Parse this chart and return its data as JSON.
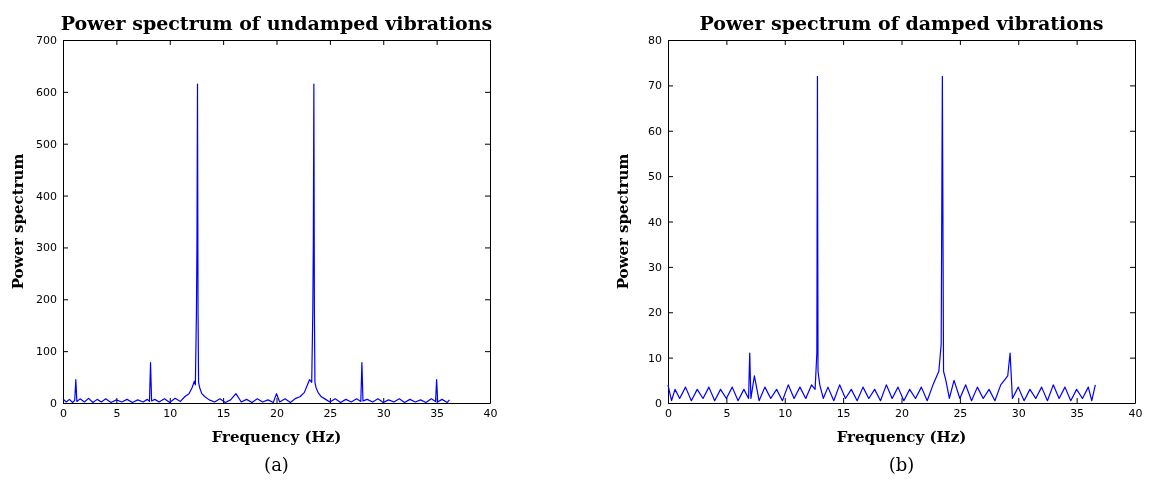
{
  "chart_data": [
    {
      "type": "line",
      "title": "Power spectrum of undamped vibrations",
      "xlabel": "Frequency (Hz)",
      "ylabel": "Power spectrum",
      "annotations": [
        "(a)"
      ],
      "xlim": [
        0,
        40
      ],
      "xticks": [
        0,
        5,
        10,
        15,
        20,
        25,
        30,
        35,
        40
      ],
      "ylim": [
        0,
        700
      ],
      "yticks": [
        0,
        100,
        200,
        300,
        400,
        500,
        600,
        700
      ],
      "series": [
        {
          "color": "#0000ff",
          "x": [
            0,
            0.3,
            0.6,
            0.9,
            1.1,
            1.2,
            1.3,
            1.6,
            2.0,
            2.4,
            2.8,
            3.2,
            3.6,
            4.0,
            4.5,
            5.0,
            5.5,
            6.0,
            6.5,
            7.0,
            7.5,
            7.9,
            8.1,
            8.2,
            8.3,
            8.6,
            9.0,
            9.5,
            10,
            10.5,
            11,
            11.4,
            11.8,
            12.1,
            12.3,
            12.4,
            12.5,
            12.55,
            12.6,
            12.65,
            12.7,
            12.8,
            13.0,
            13.3,
            13.7,
            14.2,
            14.7,
            15.2,
            15.7,
            16.2,
            16.7,
            17.2,
            17.7,
            18.2,
            18.7,
            19.2,
            19.7,
            20.0,
            20.3,
            20.8,
            21.3,
            21.8,
            22.2,
            22.6,
            22.9,
            23.1,
            23.3,
            23.4,
            23.45,
            23.5,
            23.55,
            23.6,
            23.7,
            23.9,
            24.2,
            24.6,
            25.0,
            25.5,
            26,
            26.5,
            27,
            27.5,
            27.9,
            28.0,
            28.1,
            28.5,
            29,
            29.5,
            30,
            30.5,
            31,
            31.5,
            32,
            32.5,
            33,
            33.5,
            34,
            34.5,
            34.9,
            35.0,
            35.1,
            35.5,
            36.0,
            36.2
          ],
          "values": [
            8,
            2,
            7,
            1,
            5,
            45,
            3,
            8,
            2,
            9,
            1,
            7,
            2,
            8,
            1,
            6,
            2,
            7,
            1,
            6,
            2,
            7,
            3,
            78,
            4,
            7,
            2,
            8,
            1,
            9,
            3,
            12,
            18,
            30,
            42,
            35,
            175,
            310,
            615,
            175,
            40,
            30,
            18,
            12,
            6,
            2,
            8,
            1,
            6,
            18,
            2,
            7,
            1,
            8,
            2,
            6,
            1,
            18,
            2,
            8,
            1,
            9,
            12,
            20,
            35,
            45,
            40,
            175,
            310,
            615,
            175,
            40,
            30,
            20,
            12,
            7,
            2,
            8,
            1,
            7,
            2,
            8,
            3,
            78,
            4,
            7,
            2,
            8,
            1,
            6,
            2,
            8,
            1,
            7,
            2,
            6,
            1,
            8,
            3,
            45,
            2,
            7,
            1,
            6
          ]
        }
      ]
    },
    {
      "type": "line",
      "title": "Power spectrum of damped vibrations",
      "xlabel": "Frequency (Hz)",
      "ylabel": "Power spectrum",
      "annotations": [
        "(b)"
      ],
      "xlim": [
        0,
        40
      ],
      "xticks": [
        0,
        5,
        10,
        15,
        20,
        25,
        30,
        35,
        40
      ],
      "ylim": [
        0,
        80
      ],
      "yticks": [
        0,
        10,
        20,
        30,
        40,
        50,
        60,
        70,
        80
      ],
      "series": [
        {
          "color": "#0000ff",
          "x": [
            0,
            0.3,
            0.6,
            1,
            1.5,
            2,
            2.5,
            3,
            3.5,
            4,
            4.5,
            5,
            5.5,
            6,
            6.5,
            6.9,
            7.0,
            7.1,
            7.4,
            7.8,
            8.3,
            8.8,
            9.3,
            9.8,
            10.3,
            10.8,
            11.3,
            11.8,
            12.3,
            12.6,
            12.75,
            12.8,
            12.85,
            13.0,
            13.3,
            13.7,
            14.2,
            14.7,
            15.2,
            15.7,
            16.2,
            16.7,
            17.2,
            17.7,
            18.2,
            18.7,
            19.2,
            19.7,
            20.2,
            20.7,
            21.2,
            21.7,
            22.2,
            22.7,
            23.2,
            23.4,
            23.5,
            23.6,
            23.8,
            24.1,
            24.5,
            25,
            25.5,
            26,
            26.5,
            27,
            27.5,
            28,
            28.5,
            29.1,
            29.3,
            29.5,
            30,
            30.5,
            31,
            31.5,
            32,
            32.5,
            33,
            33.5,
            34,
            34.5,
            35,
            35.5,
            36,
            36.3,
            36.6
          ],
          "values": [
            4,
            0.5,
            3,
            1,
            3.5,
            0.5,
            3,
            1,
            3.5,
            0.5,
            3,
            1,
            3.5,
            0.5,
            3,
            1,
            11,
            1,
            6,
            0.5,
            3.5,
            1,
            3,
            0.5,
            4,
            1,
            3.5,
            1,
            4,
            3,
            11,
            72,
            7,
            4,
            1,
            3.5,
            0.5,
            4,
            1,
            3,
            0.5,
            3.5,
            1,
            3,
            0.5,
            4,
            1,
            3.5,
            0.5,
            3,
            1,
            3.5,
            0.5,
            4,
            7,
            13,
            72,
            7,
            5,
            1,
            5,
            1,
            4,
            0.5,
            3.5,
            1,
            3,
            0.5,
            4,
            6,
            11,
            1,
            3.5,
            0.5,
            3,
            1,
            3.5,
            0.5,
            4,
            1,
            3.5,
            0.5,
            3,
            1,
            3.5,
            0.5,
            4
          ]
        }
      ]
    }
  ]
}
